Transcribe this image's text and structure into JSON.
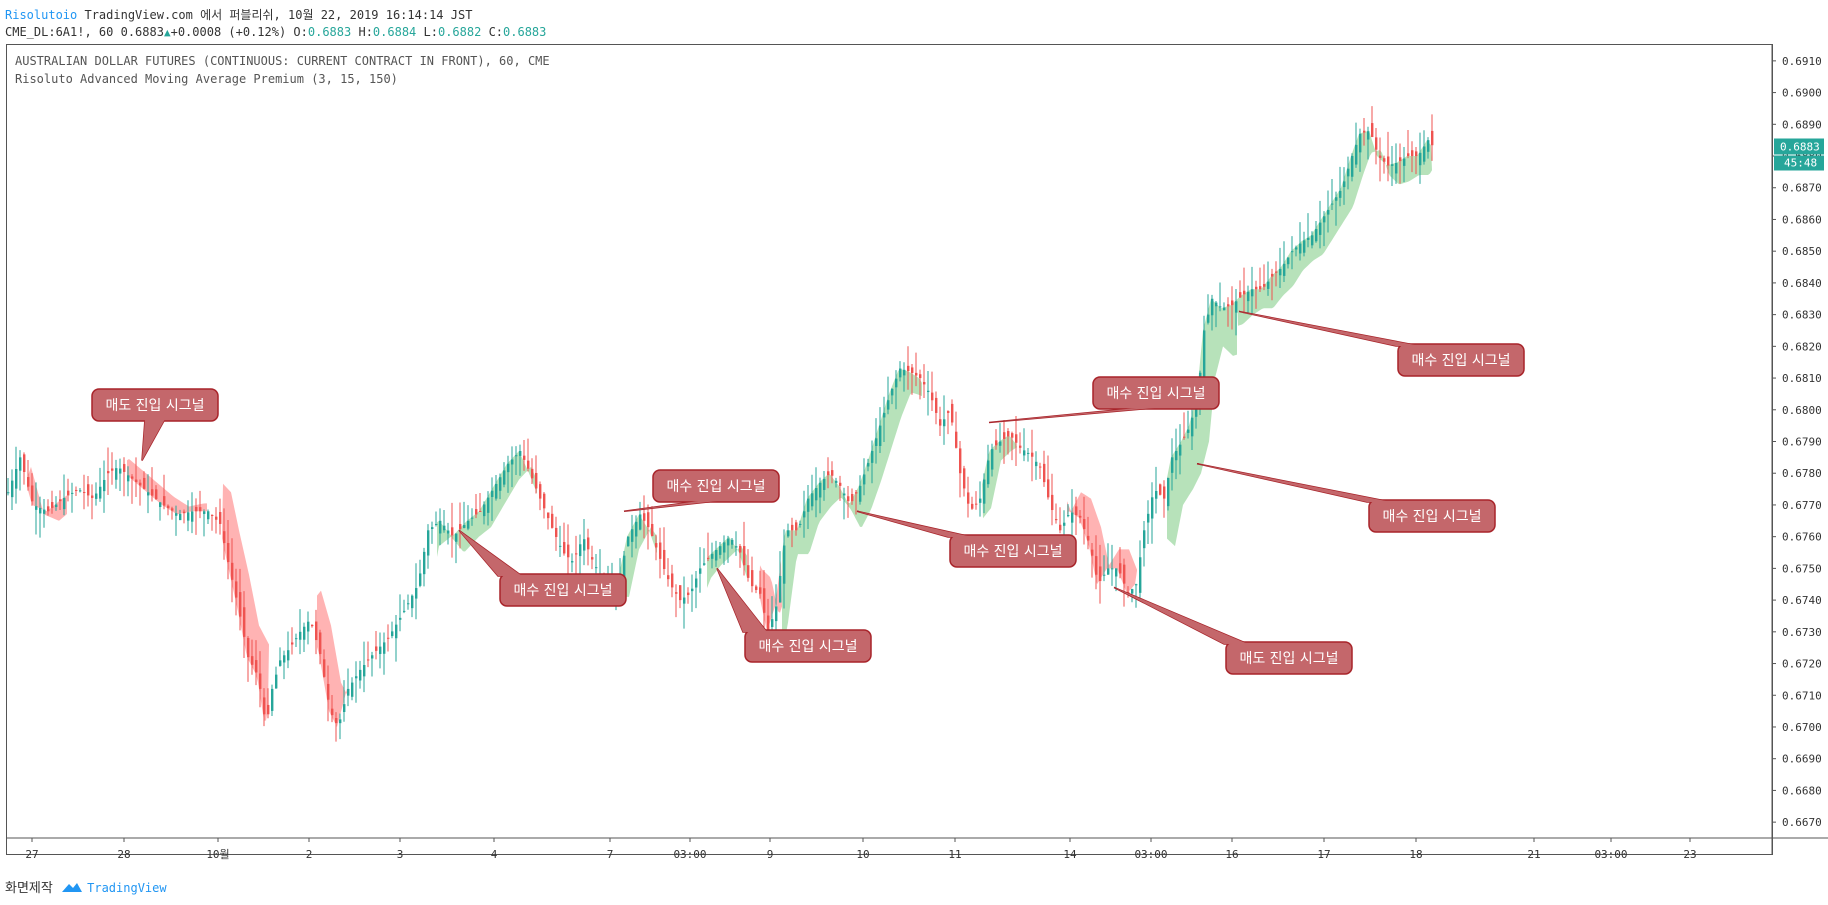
{
  "header": {
    "publisher": "Risolutoio",
    "published_text": "TradingView.com 에서 퍼블리쉬, 10월 22, 2019 16:14:14 JST",
    "symbol": "CME_DL:6A1!, 60",
    "last": "0.6883",
    "change": "+0.0008 (+0.12%)",
    "o_label": "O:",
    "o": "0.6883",
    "h_label": "H:",
    "h": "0.6884",
    "l_label": "L:",
    "l": "0.6882",
    "c_label": "C:",
    "c": "0.6883"
  },
  "legend": {
    "instrument": "AUSTRALIAN DOLLAR FUTURES (CONTINUOUS: CURRENT CONTRACT IN FRONT), 60, CME",
    "indicator": "Risoluto Advanced Moving Average Premium (3, 15, 150)"
  },
  "price_badge": {
    "value": "0.6883",
    "countdown": "45:48"
  },
  "footer": {
    "label": "화면제작",
    "brand": "TradingView"
  },
  "colors": {
    "up": "#26a69a",
    "down": "#ef5350",
    "sell_fill": "#ff9a9a",
    "buy_fill": "#9fd8a3",
    "callout": "#c4676b",
    "callout_border": "#a8242a"
  },
  "chart_data": {
    "type": "candlestick",
    "ylim": [
      0.6665,
      0.6915
    ],
    "y_ticks": [
      "0.6670",
      "0.6680",
      "0.6690",
      "0.6700",
      "0.6710",
      "0.6720",
      "0.6730",
      "0.6740",
      "0.6750",
      "0.6760",
      "0.6770",
      "0.6780",
      "0.6790",
      "0.6800",
      "0.6810",
      "0.6820",
      "0.6830",
      "0.6840",
      "0.6850",
      "0.6860",
      "0.6870",
      "0.6880",
      "0.6890",
      "0.6900",
      "0.6910"
    ],
    "x_ticks": [
      "27",
      "28",
      "10월",
      "2",
      "3",
      "4",
      "7",
      "03:00",
      "9",
      "10",
      "11",
      "14",
      "03:00",
      "16",
      "17",
      "18",
      "21",
      "03:00",
      "23"
    ],
    "price_path": [
      [
        0,
        0.6774
      ],
      [
        12,
        0.6785
      ],
      [
        25,
        0.677
      ],
      [
        40,
        0.6768
      ],
      [
        55,
        0.6772
      ],
      [
        70,
        0.6775
      ],
      [
        85,
        0.6772
      ],
      [
        100,
        0.678
      ],
      [
        110,
        0.6782
      ],
      [
        125,
        0.6778
      ],
      [
        140,
        0.6774
      ],
      [
        155,
        0.677
      ],
      [
        170,
        0.6767
      ],
      [
        185,
        0.6768
      ],
      [
        200,
        0.6768
      ],
      [
        212,
        0.6764
      ],
      [
        220,
        0.6752
      ],
      [
        230,
        0.6738
      ],
      [
        240,
        0.6722
      ],
      [
        250,
        0.6716
      ],
      [
        258,
        0.67
      ],
      [
        264,
        0.6712
      ],
      [
        272,
        0.6721
      ],
      [
        282,
        0.6725
      ],
      [
        292,
        0.673
      ],
      [
        302,
        0.6734
      ],
      [
        312,
        0.6723
      ],
      [
        322,
        0.6705
      ],
      [
        330,
        0.67
      ],
      [
        340,
        0.6712
      ],
      [
        352,
        0.6718
      ],
      [
        365,
        0.6723
      ],
      [
        380,
        0.6728
      ],
      [
        395,
        0.6736
      ],
      [
        410,
        0.6745
      ],
      [
        420,
        0.6762
      ],
      [
        432,
        0.6765
      ],
      [
        445,
        0.676
      ],
      [
        460,
        0.6765
      ],
      [
        472,
        0.6768
      ],
      [
        485,
        0.6775
      ],
      [
        500,
        0.6783
      ],
      [
        512,
        0.6787
      ],
      [
        522,
        0.678
      ],
      [
        532,
        0.6772
      ],
      [
        545,
        0.6762
      ],
      [
        555,
        0.6755
      ],
      [
        565,
        0.6752
      ],
      [
        575,
        0.676
      ],
      [
        585,
        0.6752
      ],
      [
        598,
        0.6745
      ],
      [
        610,
        0.6745
      ],
      [
        620,
        0.676
      ],
      [
        632,
        0.6767
      ],
      [
        642,
        0.6762
      ],
      [
        652,
        0.6753
      ],
      [
        662,
        0.6745
      ],
      [
        672,
        0.674
      ],
      [
        682,
        0.6742
      ],
      [
        692,
        0.675
      ],
      [
        702,
        0.6754
      ],
      [
        712,
        0.6757
      ],
      [
        722,
        0.676
      ],
      [
        732,
        0.6755
      ],
      [
        742,
        0.6745
      ],
      [
        752,
        0.6742
      ],
      [
        760,
        0.673
      ],
      [
        768,
        0.6738
      ],
      [
        778,
        0.6762
      ],
      [
        790,
        0.6762
      ],
      [
        800,
        0.6772
      ],
      [
        812,
        0.6777
      ],
      [
        822,
        0.678
      ],
      [
        832,
        0.6776
      ],
      [
        842,
        0.677
      ],
      [
        852,
        0.6776
      ],
      [
        862,
        0.6785
      ],
      [
        872,
        0.6795
      ],
      [
        882,
        0.6805
      ],
      [
        892,
        0.6813
      ],
      [
        902,
        0.6812
      ],
      [
        912,
        0.681
      ],
      [
        922,
        0.6805
      ],
      [
        932,
        0.6795
      ],
      [
        942,
        0.68
      ],
      [
        952,
        0.678
      ],
      [
        962,
        0.6768
      ],
      [
        972,
        0.6772
      ],
      [
        982,
        0.6787
      ],
      [
        992,
        0.679
      ],
      [
        1002,
        0.6792
      ],
      [
        1012,
        0.6788
      ],
      [
        1022,
        0.6786
      ],
      [
        1032,
        0.6782
      ],
      [
        1042,
        0.677
      ],
      [
        1052,
        0.6762
      ],
      [
        1062,
        0.6768
      ],
      [
        1072,
        0.6766
      ],
      [
        1082,
        0.6757
      ],
      [
        1090,
        0.6745
      ],
      [
        1100,
        0.675
      ],
      [
        1110,
        0.675
      ],
      [
        1120,
        0.6742
      ],
      [
        1128,
        0.6745
      ],
      [
        1136,
        0.6762
      ],
      [
        1146,
        0.6775
      ],
      [
        1156,
        0.6772
      ],
      [
        1164,
        0.6785
      ],
      [
        1174,
        0.679
      ],
      [
        1182,
        0.6795
      ],
      [
        1190,
        0.6805
      ],
      [
        1196,
        0.6825
      ],
      [
        1204,
        0.6835
      ],
      [
        1214,
        0.6832
      ],
      [
        1224,
        0.6833
      ],
      [
        1234,
        0.6836
      ],
      [
        1244,
        0.6838
      ],
      [
        1254,
        0.6838
      ],
      [
        1264,
        0.6842
      ],
      [
        1274,
        0.6845
      ],
      [
        1284,
        0.685
      ],
      [
        1294,
        0.6853
      ],
      [
        1304,
        0.6855
      ],
      [
        1314,
        0.686
      ],
      [
        1324,
        0.6865
      ],
      [
        1334,
        0.687
      ],
      [
        1344,
        0.688
      ],
      [
        1352,
        0.6887
      ],
      [
        1362,
        0.6888
      ],
      [
        1370,
        0.688
      ],
      [
        1380,
        0.6877
      ],
      [
        1390,
        0.6878
      ],
      [
        1400,
        0.688
      ],
      [
        1410,
        0.688
      ],
      [
        1420,
        0.6885
      ],
      [
        1425,
        0.6883
      ]
    ],
    "callouts": [
      {
        "text": "매도 진입 시그널",
        "type": "sell",
        "pointer": [
          135,
          0.6784
        ]
      },
      {
        "text": "매수 진입 시그널",
        "type": "buy",
        "pointer": [
          452,
          0.6762
        ]
      },
      {
        "text": "매수 진입 시그널",
        "type": "buy",
        "pointer": [
          617,
          0.6768
        ]
      },
      {
        "text": "매수 진입 시그널",
        "type": "buy",
        "pointer": [
          710,
          0.675
        ]
      },
      {
        "text": "매수 진입 시그널",
        "type": "buy",
        "pointer": [
          850,
          0.6768
        ]
      },
      {
        "text": "매수 진입 시그널",
        "type": "buy",
        "pointer": [
          982,
          0.6796
        ]
      },
      {
        "text": "매도 진입 시그널",
        "type": "sell",
        "pointer": [
          1107,
          0.6744
        ]
      },
      {
        "text": "매수 진입 시그널",
        "type": "buy",
        "pointer": [
          1190,
          0.6783
        ]
      },
      {
        "text": "매수 진입 시그널",
        "type": "buy",
        "pointer": [
          1232,
          0.6831
        ]
      }
    ]
  }
}
